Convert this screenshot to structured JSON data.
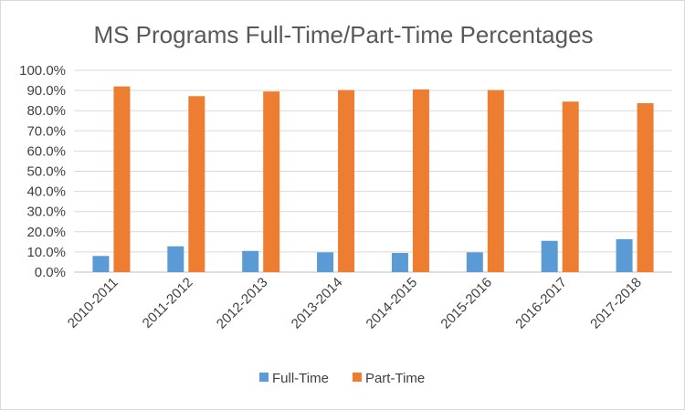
{
  "chart_data": {
    "type": "bar",
    "title": "MS Programs Full-Time/Part-Time Percentages",
    "xlabel": "",
    "ylabel": "",
    "categories": [
      "2010-2011",
      "2011-2012",
      "2012-2013",
      "2013-2014",
      "2014-2015",
      "2015-2016",
      "2016-2017",
      "2017-2018"
    ],
    "series": [
      {
        "name": "Full-Time",
        "color": "#5B9BD5",
        "values": [
          8.0,
          12.8,
          10.5,
          9.8,
          9.5,
          9.8,
          15.5,
          16.3
        ]
      },
      {
        "name": "Part-Time",
        "color": "#ED7D31",
        "values": [
          92.0,
          87.2,
          89.5,
          90.2,
          90.5,
          90.2,
          84.5,
          83.7
        ]
      }
    ],
    "ylim": [
      0,
      100
    ],
    "yticks": [
      "0.0%",
      "10.0%",
      "20.0%",
      "30.0%",
      "40.0%",
      "50.0%",
      "60.0%",
      "70.0%",
      "80.0%",
      "90.0%",
      "100.0%"
    ],
    "grid": true,
    "legend": "bottom"
  }
}
